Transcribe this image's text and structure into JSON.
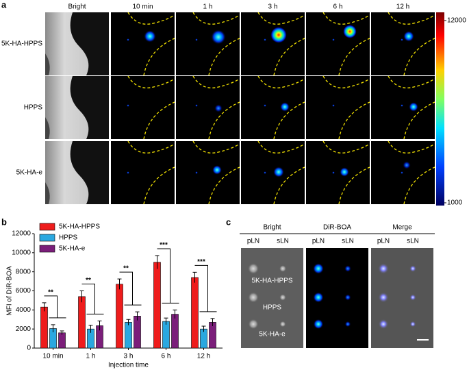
{
  "panel_a": {
    "label": "a",
    "columns": [
      "Bright",
      "10 min",
      "1 h",
      "3 h",
      "6 h",
      "12 h"
    ],
    "rows": [
      "5K-HA-HPPS",
      "HPPS",
      "5K-HA-e"
    ],
    "colorbar": {
      "max": 12000,
      "min": 1000
    }
  },
  "chart_data": {
    "type": "bar",
    "panel_label": "b",
    "categories": [
      "10 min",
      "1 h",
      "3 h",
      "6 h",
      "12 h"
    ],
    "series": [
      {
        "name": "5K-HA-HPPS",
        "color": "#ee1c1c",
        "values": [
          4300,
          5400,
          6700,
          9000,
          7400
        ],
        "errors": [
          450,
          600,
          550,
          700,
          550
        ]
      },
      {
        "name": "HPPS",
        "color": "#2aa8e0",
        "values": [
          2050,
          2000,
          2700,
          2800,
          2000
        ],
        "errors": [
          400,
          400,
          300,
          350,
          300
        ]
      },
      {
        "name": "5K-HA-e",
        "color": "#7b1e7a",
        "values": [
          1600,
          2350,
          3350,
          3550,
          2700
        ],
        "errors": [
          200,
          500,
          450,
          450,
          400
        ]
      }
    ],
    "significance": [
      "**",
      "**",
      "**",
      "***",
      "***"
    ],
    "ylim": [
      0,
      12000
    ],
    "yticks": [
      0,
      2000,
      4000,
      6000,
      8000,
      10000,
      12000
    ],
    "ylabel": "MFI of DiR-BOA",
    "xlabel": "Injection time",
    "legend": "upper-left"
  },
  "panel_c": {
    "label": "c",
    "groups": [
      "Bright",
      "DiR-BOA",
      "Merge"
    ],
    "columns": [
      "pLN",
      "sLN"
    ],
    "rows": [
      "5K-HA-HPPS",
      "HPPS",
      "5K-HA-e"
    ]
  }
}
